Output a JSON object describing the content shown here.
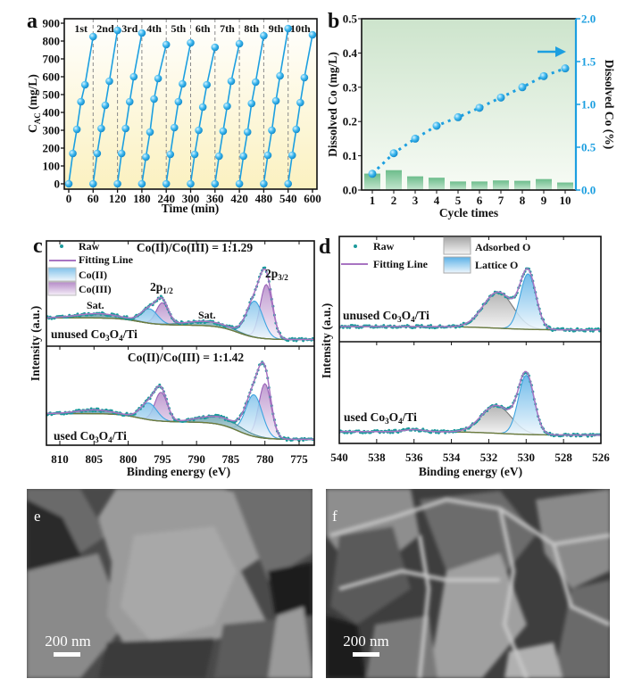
{
  "colors": {
    "cycle_blue": "#1c9fe0",
    "bar_green": "#7cc496",
    "raw_teal": "#1b9a9c",
    "fit_purple": "#a874c2",
    "co2_blue": "#7fc1ea",
    "co3_purple": "#b58ac8",
    "adsorbed_gray": "#a8a8a8",
    "lattice_blue": "#5ab0e6",
    "background_olive": "#6e7b3c"
  },
  "chart_data": [
    {
      "panel_label": "a",
      "type": "line",
      "title": "",
      "xlabel": "Time (min)",
      "ylabel": {
        "main": "C",
        "sub": "AC",
        "rest": " (mg/L)"
      },
      "xlim": [
        0,
        600
      ],
      "ylim": [
        0,
        900
      ],
      "xticks": [
        0,
        60,
        120,
        180,
        240,
        300,
        360,
        420,
        480,
        540,
        600
      ],
      "yticks": [
        0,
        100,
        200,
        300,
        400,
        500,
        600,
        700,
        800,
        900
      ],
      "cycle_labels": [
        "1st",
        "2nd",
        "3rd",
        "4th",
        "5th",
        "6th",
        "7th",
        "8th",
        "9th",
        "10th"
      ],
      "grid": false,
      "background": "white-to-yellow gradient",
      "series": [
        {
          "x": [
            0,
            10,
            20,
            30,
            40,
            60
          ],
          "y": [
            0,
            170,
            305,
            460,
            555,
            825
          ]
        },
        {
          "x": [
            60,
            70,
            80,
            90,
            100,
            120
          ],
          "y": [
            0,
            170,
            310,
            440,
            575,
            860
          ]
        },
        {
          "x": [
            120,
            130,
            140,
            150,
            160,
            180
          ],
          "y": [
            0,
            170,
            310,
            460,
            600,
            845
          ]
        },
        {
          "x": [
            180,
            190,
            200,
            210,
            220,
            240
          ],
          "y": [
            0,
            150,
            290,
            475,
            590,
            780
          ]
        },
        {
          "x": [
            240,
            250,
            260,
            270,
            280,
            300
          ],
          "y": [
            0,
            165,
            315,
            460,
            560,
            790
          ]
        },
        {
          "x": [
            300,
            310,
            320,
            330,
            340,
            360
          ],
          "y": [
            0,
            165,
            300,
            430,
            555,
            765
          ]
        },
        {
          "x": [
            360,
            370,
            380,
            390,
            400,
            420
          ],
          "y": [
            0,
            155,
            295,
            435,
            575,
            785
          ]
        },
        {
          "x": [
            420,
            430,
            440,
            450,
            460,
            480
          ],
          "y": [
            0,
            155,
            290,
            450,
            570,
            830
          ]
        },
        {
          "x": [
            480,
            490,
            500,
            510,
            520,
            540
          ],
          "y": [
            0,
            160,
            300,
            465,
            605,
            870
          ]
        },
        {
          "x": [
            540,
            550,
            560,
            570,
            580,
            600
          ],
          "y": [
            0,
            160,
            305,
            455,
            595,
            835
          ]
        }
      ]
    },
    {
      "panel_label": "b",
      "type": "bar+line",
      "title": "",
      "xlabel": "Cycle times",
      "ylabel_left": "Dissolved Co (mg/L)",
      "ylabel_right": "Dissolved Co (%)",
      "categories": [
        1,
        2,
        3,
        4,
        5,
        6,
        7,
        8,
        9,
        10
      ],
      "ylim_left": [
        0,
        0.5
      ],
      "ylim_right": [
        0,
        2.0
      ],
      "yticks_left": [
        "0.0",
        "0.1",
        "0.2",
        "0.3",
        "0.4",
        "0.5"
      ],
      "yticks_right": [
        "0.0",
        "0.5",
        "1.0",
        "1.5",
        "2.0"
      ],
      "bars_mg_per_L": [
        0.048,
        0.058,
        0.04,
        0.036,
        0.025,
        0.025,
        0.028,
        0.027,
        0.032,
        0.022
      ],
      "line_percent": [
        0.19,
        0.43,
        0.6,
        0.75,
        0.85,
        0.96,
        1.08,
        1.2,
        1.33,
        1.42
      ],
      "arrow_direction": "right",
      "grid": false,
      "background": "green-to-white gradient"
    },
    {
      "panel_label": "c",
      "type": "line",
      "title": "",
      "xlabel": "Binding energy (eV)",
      "ylabel": "Intensity (a.u.)",
      "x_reversed": true,
      "xlim": [
        812,
        773
      ],
      "xticks": [
        810,
        805,
        800,
        795,
        790,
        785,
        780,
        775
      ],
      "legend": {
        "placement": "top-left",
        "raw": "Raw",
        "fit": "Fitting Line",
        "co2": "Co(II)",
        "co3": "Co(III)"
      },
      "peak_labels": {
        "p12_main": "2p",
        "p12_sub": "1/2",
        "p32_main": "2p",
        "p32_sub": "3/2",
        "sat": "Sat."
      },
      "subplots": [
        {
          "sample_label": [
            "unused Co",
            "3",
            "O",
            "4",
            "/Ti"
          ],
          "ratio_text": "Co(II)/Co(III) = 1:1.29",
          "components": [
            {
              "name": "Co(III)",
              "center": 779.8,
              "height": 0.75,
              "sigma": 0.9
            },
            {
              "name": "Co(II)",
              "center": 781.5,
              "height": 0.5,
              "sigma": 1.2
            },
            {
              "name": "Co(III)",
              "center": 795.0,
              "height": 0.3,
              "sigma": 0.9
            },
            {
              "name": "Co(II)",
              "center": 796.9,
              "height": 0.2,
              "sigma": 1.2
            },
            {
              "name": "Sat.",
              "center": 788.5,
              "height": 0.06,
              "sigma": 3.0
            },
            {
              "name": "Sat.",
              "center": 804.5,
              "height": 0.06,
              "sigma": 3.0
            }
          ]
        },
        {
          "sample_label": [
            "used Co",
            "3",
            "O",
            "4",
            "/Ti"
          ],
          "ratio_text": "Co(II)/Co(III) = 1:1.42",
          "components": [
            {
              "name": "Co(III)",
              "center": 780.0,
              "height": 0.72,
              "sigma": 0.9
            },
            {
              "name": "Co(II)",
              "center": 781.6,
              "height": 0.55,
              "sigma": 1.2
            },
            {
              "name": "Co(III)",
              "center": 795.2,
              "height": 0.38,
              "sigma": 0.9
            },
            {
              "name": "Co(II)",
              "center": 797.0,
              "height": 0.22,
              "sigma": 1.2
            },
            {
              "name": "Sat.",
              "center": 786.5,
              "height": 0.1,
              "sigma": 3.0
            },
            {
              "name": "Sat.",
              "center": 805.0,
              "height": 0.05,
              "sigma": 2.5
            }
          ]
        }
      ]
    },
    {
      "panel_label": "d",
      "type": "line",
      "title": "",
      "xlabel": "Binding energy (eV)",
      "ylabel": "Intensity (a.u.)",
      "x_reversed": true,
      "xlim": [
        540,
        526
      ],
      "xticks": [
        540,
        538,
        536,
        534,
        532,
        530,
        528,
        526
      ],
      "legend": {
        "placement": "top",
        "raw": "Raw",
        "fit": "Fitting Line",
        "adsorbed": "Adsorbed O",
        "lattice": "Lattice O"
      },
      "subplots": [
        {
          "sample_label": [
            "unused Co",
            "3",
            "O",
            "4",
            "/Ti"
          ],
          "components": [
            {
              "name": "Adsorbed O",
              "center": 531.5,
              "height": 0.54,
              "sigma": 0.8
            },
            {
              "name": "Lattice O",
              "center": 529.9,
              "height": 0.83,
              "sigma": 0.42
            }
          ]
        },
        {
          "sample_label": [
            "used Co",
            "3",
            "O",
            "4",
            "/Ti"
          ],
          "components": [
            {
              "name": "Adsorbed O",
              "center": 531.6,
              "height": 0.4,
              "sigma": 0.8
            },
            {
              "name": "Lattice O",
              "center": 530.0,
              "height": 0.85,
              "sigma": 0.42
            }
          ]
        }
      ]
    }
  ],
  "sem": [
    {
      "panel_label": "e",
      "scale_bar": "200 nm"
    },
    {
      "panel_label": "f",
      "scale_bar": "200 nm"
    }
  ]
}
